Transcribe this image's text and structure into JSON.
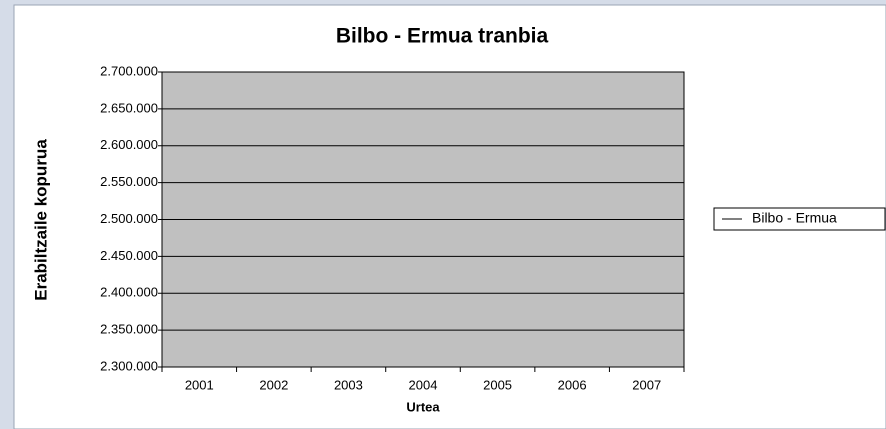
{
  "chart_data": {
    "type": "line",
    "title": "Bilbo - Ermua tranbia",
    "xlabel": "Urtea",
    "ylabel": "Erabiltzaile kopurua",
    "categories": [
      "2001",
      "2002",
      "2003",
      "2004",
      "2005",
      "2006",
      "2007"
    ],
    "series": [
      {
        "name": "Bilbo - Ermua",
        "color": "#000000",
        "values": [
          null,
          null,
          null,
          null,
          null,
          null,
          null
        ]
      }
    ],
    "ylim": [
      2300000,
      2700000
    ],
    "yticks": [
      {
        "value": 2300000,
        "label": "2.300.000"
      },
      {
        "value": 2350000,
        "label": "2.350.000"
      },
      {
        "value": 2400000,
        "label": "2.400.000"
      },
      {
        "value": 2450000,
        "label": "2.450.000"
      },
      {
        "value": 2500000,
        "label": "2.500.000"
      },
      {
        "value": 2550000,
        "label": "2.550.000"
      },
      {
        "value": 2600000,
        "label": "2.600.000"
      },
      {
        "value": 2650000,
        "label": "2.650.000"
      },
      {
        "value": 2700000,
        "label": "2.700.000"
      }
    ],
    "grid": true,
    "legend": "right",
    "plot_background": "#c0c0c0"
  }
}
